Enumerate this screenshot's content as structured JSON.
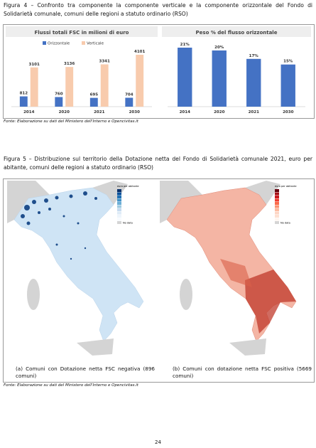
{
  "figure4": {
    "caption": "Figura 4 – Confronto tra componente la componente verticale e la componente orizzontale del Fondo di Solidarietà comunale, comuni delle regioni a statuto ordinario (RSO)",
    "source": "Fonte: Elaborazione su dati del Ministero dell'Interno e Opencivitas.it"
  },
  "chart_data": [
    {
      "type": "bar",
      "title": "Flussi totali FSC in milioni di euro",
      "categories": [
        "2014",
        "2020",
        "2021",
        "2030"
      ],
      "series": [
        {
          "name": "Orizzontale",
          "color": "#4472c4",
          "values": [
            812,
            760,
            695,
            704
          ]
        },
        {
          "name": "Verticale",
          "color": "#f8cbad",
          "values": [
            3101,
            3136,
            3341,
            4101
          ]
        }
      ]
    },
    {
      "type": "bar",
      "title": "Peso % del flusso orizzontale",
      "categories": [
        "2014",
        "2020",
        "2021",
        "2030"
      ],
      "values": [
        21,
        20,
        17,
        15
      ],
      "value_labels": [
        "21%",
        "20%",
        "17%",
        "15%"
      ],
      "color": "#4472c4"
    }
  ],
  "figure5": {
    "caption": "Figura 5 – Distribuzione sul territorio della Dotazione netta del Fondo di Solidarietà comunale 2021, euro per abitante, comuni delle regioni a statuto ordinario (RSO)",
    "legend_title": "euro per abitante",
    "no_data": "No data",
    "panel_a": "(a) Comuni con Dotazione netta FSC negativa (896 comuni)",
    "panel_b": "(b) Comuni con dotazione netta FSC positiva (5669 comuni)",
    "source": "Fonte: Elaborazione su dati del Ministero dell'Interno e Opencivitas.it"
  },
  "page_number": "24"
}
